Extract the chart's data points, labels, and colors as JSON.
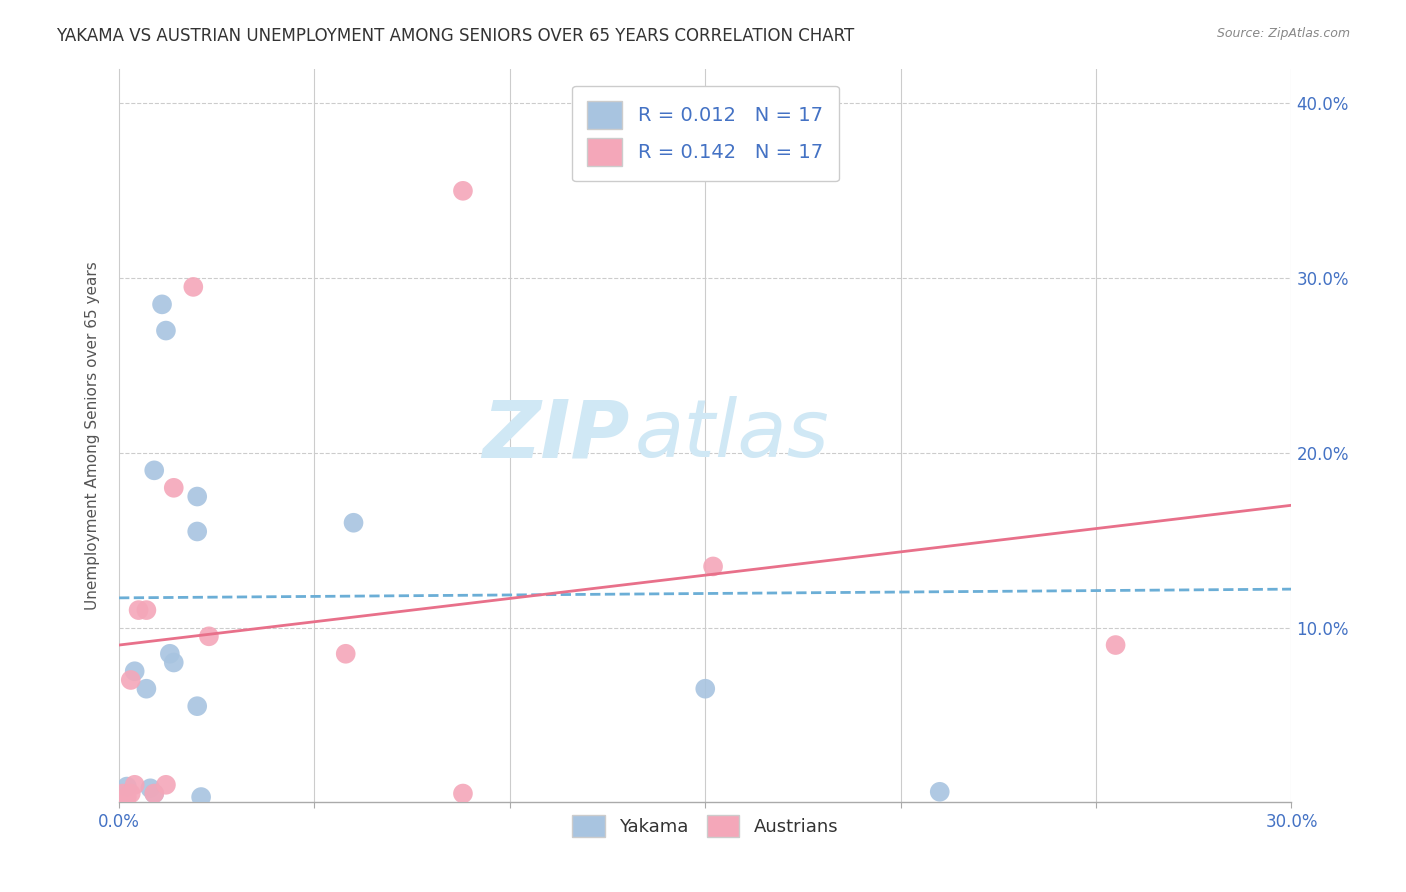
{
  "title": "YAKAMA VS AUSTRIAN UNEMPLOYMENT AMONG SENIORS OVER 65 YEARS CORRELATION CHART",
  "source": "Source: ZipAtlas.com",
  "ylabel": "Unemployment Among Seniors over 65 years",
  "xlim": [
    0.0,
    0.3
  ],
  "ylim": [
    0.0,
    0.42
  ],
  "xticks": [
    0.0,
    0.05,
    0.1,
    0.15,
    0.2,
    0.25,
    0.3
  ],
  "yticks": [
    0.0,
    0.1,
    0.2,
    0.3,
    0.4
  ],
  "ytick_labels": [
    "",
    "10.0%",
    "20.0%",
    "30.0%",
    "40.0%"
  ],
  "yakama_color": "#a8c4e0",
  "austrians_color": "#f4a7b9",
  "yakama_line_color": "#6baed6",
  "austrians_line_color": "#e8708a",
  "legend_r_yakama": "R = 0.012",
  "legend_n_yakama": "N = 17",
  "legend_r_austrians": "R = 0.142",
  "legend_n_austrians": "N = 17",
  "watermark_zip": "ZIP",
  "watermark_atlas": "atlas",
  "watermark_color": "#d0e8f5",
  "yakama_x": [
    0.002,
    0.004,
    0.007,
    0.008,
    0.009,
    0.009,
    0.011,
    0.012,
    0.013,
    0.014,
    0.02,
    0.02,
    0.02,
    0.021,
    0.06,
    0.15,
    0.21
  ],
  "yakama_y": [
    0.009,
    0.075,
    0.065,
    0.008,
    0.005,
    0.19,
    0.285,
    0.27,
    0.085,
    0.08,
    0.175,
    0.155,
    0.055,
    0.003,
    0.16,
    0.065,
    0.006
  ],
  "austrians_x": [
    0.001,
    0.002,
    0.003,
    0.003,
    0.004,
    0.005,
    0.007,
    0.009,
    0.012,
    0.014,
    0.019,
    0.023,
    0.058,
    0.088,
    0.152,
    0.255,
    0.088
  ],
  "austrians_y": [
    0.005,
    0.003,
    0.07,
    0.005,
    0.01,
    0.11,
    0.11,
    0.005,
    0.01,
    0.18,
    0.295,
    0.095,
    0.085,
    0.35,
    0.135,
    0.09,
    0.005
  ],
  "yakama_trend_x": [
    0.0,
    0.3
  ],
  "yakama_trend_y": [
    0.117,
    0.122
  ],
  "austrians_trend_x": [
    0.0,
    0.3
  ],
  "austrians_trend_y": [
    0.09,
    0.17
  ],
  "background_color": "#ffffff",
  "grid_color": "#cccccc",
  "title_fontsize": 12,
  "axis_label_fontsize": 11,
  "tick_fontsize": 12,
  "tick_color": "#4472c4",
  "title_color": "#333333",
  "source_color": "#888888"
}
